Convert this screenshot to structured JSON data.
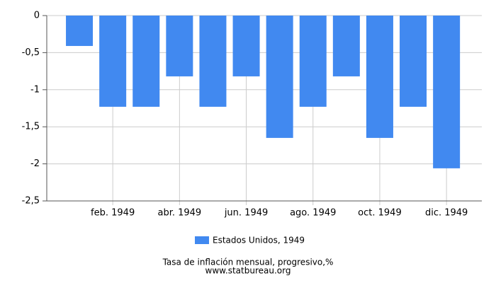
{
  "chart_data": {
    "type": "bar",
    "categories": [
      null,
      "feb. 1949",
      null,
      "abr. 1949",
      null,
      "jun. 1949",
      null,
      "ago. 1949",
      null,
      "oct. 1949",
      null,
      "dic. 1949"
    ],
    "series": [
      {
        "name": "Estados Unidos, 1949",
        "color": "#4189f0",
        "values": [
          -0.41,
          -1.23,
          -1.23,
          -0.82,
          -1.23,
          -0.82,
          -1.65,
          -1.23,
          -0.82,
          -1.65,
          -1.23,
          -2.06
        ]
      }
    ],
    "ylim": [
      -2.5,
      0
    ],
    "yticks": [
      0,
      {
        "value": -0.5,
        "label": "-0,5"
      },
      {
        "value": -1,
        "label": "-1"
      },
      {
        "value": -1.5,
        "label": "-1,5"
      },
      {
        "value": -2,
        "label": "-2"
      },
      {
        "value": -2.5,
        "label": "-2,5"
      }
    ],
    "grid": true,
    "xlabel": "Tasa de inflación mensual, progresivo,%",
    "source": "www.statbureau.org"
  }
}
